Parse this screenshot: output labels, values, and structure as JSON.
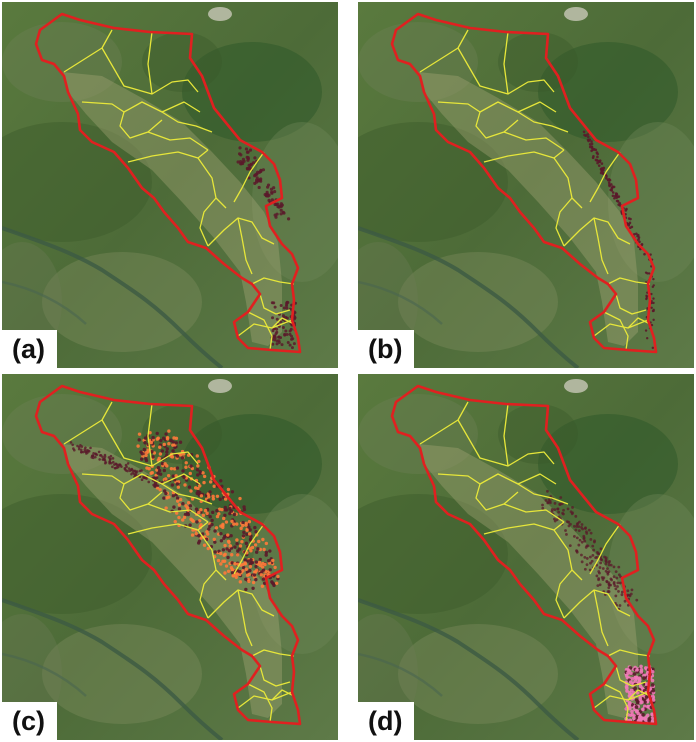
{
  "panels": [
    {
      "id": "a",
      "label": "(a)",
      "overlay": "dark-sparse"
    },
    {
      "id": "b",
      "label": "(b)",
      "overlay": "dark-edge"
    },
    {
      "id": "c",
      "label": "(c)",
      "overlay": "orange-dense"
    },
    {
      "id": "d",
      "label": "(d)",
      "overlay": "pink-south"
    }
  ],
  "colors": {
    "boundary": "#e02020",
    "subdivisions": "#e6e63a",
    "terrain_base": "#4f6e3a",
    "overlay_dark": "#5a1a2a",
    "overlay_orange": "#ff7a3a",
    "overlay_pink": "#f07ab8"
  }
}
